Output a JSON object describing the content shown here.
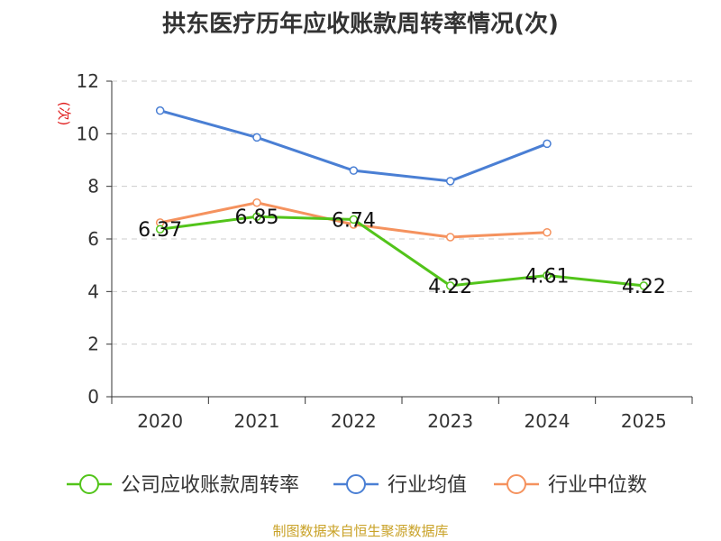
{
  "chart_data": {
    "type": "line",
    "title": "拱东医疗历年应收账款周转率情况(次)",
    "ylabel": "(次)",
    "xlabel": "",
    "categories": [
      "2020",
      "2021",
      "2022",
      "2023",
      "2024",
      "2025"
    ],
    "ylim": [
      0,
      12
    ],
    "yticks": [
      0,
      2,
      4,
      6,
      8,
      10,
      12
    ],
    "grid": true,
    "legend_position": "bottom",
    "series": [
      {
        "name": "公司应收账款周转率",
        "color": "#52c41a",
        "values": [
          6.37,
          6.85,
          6.74,
          4.22,
          4.61,
          4.22
        ],
        "labels": [
          "6.37",
          "6.85",
          "6.74",
          "4.22",
          "4.61",
          "4.22"
        ]
      },
      {
        "name": "行业均值",
        "color": "#4a7fd4",
        "values": [
          10.88,
          9.86,
          8.6,
          8.2,
          9.62,
          null
        ]
      },
      {
        "name": "行业中位数",
        "color": "#f5925e",
        "values": [
          6.62,
          7.38,
          6.55,
          6.07,
          6.25,
          null
        ]
      }
    ]
  },
  "source": "制图数据来自恒生聚源数据库"
}
